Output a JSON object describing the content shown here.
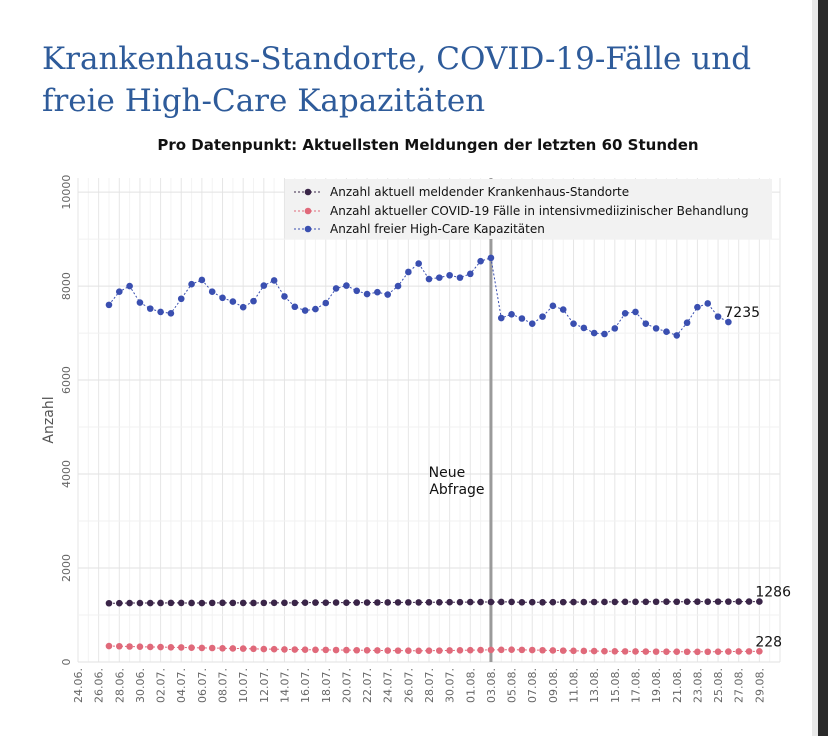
{
  "page": {
    "heading_line1": "Krankenhaus-Standorte, COVID-19-Fälle und",
    "heading_line2": "freie High-Care Kapazitäten"
  },
  "colors": {
    "heading": "#2e5b9a",
    "series_hospitals": "#3a2548",
    "series_covid": "#e0697a",
    "series_highcare": "#3a4fb0",
    "vline": "#9a9a9a"
  },
  "chart_data": {
    "type": "line",
    "title": "Pro Datenpunkt: Aktuellsten Meldungen der letzten 60 Stunden",
    "xlabel": "",
    "ylabel": "Anzahl",
    "ylim": [
      0,
      10300
    ],
    "yticks": [
      0,
      2000,
      4000,
      6000,
      8000,
      10000
    ],
    "xlim": [
      0,
      68
    ],
    "x_tick_labels": [
      "24.06.",
      "26.06.",
      "28.06.",
      "30.06.",
      "02.07.",
      "04.07.",
      "06.07.",
      "08.07.",
      "10.07.",
      "12.07.",
      "14.07.",
      "16.07.",
      "18.07.",
      "20.07.",
      "22.07.",
      "24.07.",
      "26.07.",
      "28.07.",
      "30.07.",
      "01.08.",
      "03.08.",
      "05.08.",
      "07.08.",
      "09.08.",
      "11.08.",
      "13.08.",
      "15.08.",
      "17.08.",
      "19.08.",
      "21.08.",
      "23.08.",
      "25.08.",
      "27.08.",
      "29.08."
    ],
    "x_start": 3,
    "grid": true,
    "legend_position": "top-right",
    "annotation": {
      "text_line1": "Neue",
      "text_line2": "Abfrage",
      "x": 40
    },
    "series": [
      {
        "name": "Anzahl aktuell meldender Krankenhaus-Standorte",
        "end_label": "1286",
        "values": [
          1250,
          1252,
          1255,
          1255,
          1254,
          1256,
          1258,
          1257,
          1256,
          1255,
          1258,
          1259,
          1258,
          1257,
          1256,
          1258,
          1260,
          1259,
          1258,
          1262,
          1264,
          1263,
          1265,
          1262,
          1264,
          1265,
          1266,
          1267,
          1268,
          1269,
          1268,
          1270,
          1271,
          1272,
          1273,
          1275,
          1276,
          1277,
          1278,
          1279,
          1270,
          1272,
          1271,
          1273,
          1274,
          1276,
          1275,
          1277,
          1278,
          1279,
          1280,
          1280,
          1281,
          1282,
          1283,
          1282,
          1283,
          1284,
          1284,
          1285,
          1285,
          1286,
          1286,
          1286
        ]
      },
      {
        "name": "Anzahl aktueller COVID-19 Fälle in intensivmediizinischer Behandlung",
        "end_label": "228",
        "values": [
          340,
          335,
          330,
          325,
          320,
          318,
          312,
          310,
          305,
          300,
          298,
          292,
          288,
          285,
          280,
          275,
          272,
          268,
          265,
          262,
          260,
          258,
          255,
          253,
          250,
          248,
          246,
          244,
          242,
          240,
          238,
          240,
          242,
          245,
          248,
          252,
          255,
          258,
          260,
          262,
          258,
          255,
          250,
          246,
          242,
          238,
          235,
          232,
          230,
          228,
          226,
          224,
          222,
          221,
          220,
          219,
          218,
          217,
          218,
          220,
          222,
          224,
          226,
          228
        ]
      },
      {
        "name": "Anzahl freier High-Care Kapazitäten",
        "end_label": "7235",
        "values": [
          7600,
          7880,
          8000,
          7650,
          7520,
          7450,
          7420,
          7730,
          8040,
          8130,
          7880,
          7750,
          7670,
          7550,
          7680,
          8010,
          8120,
          7780,
          7560,
          7480,
          7510,
          7640,
          7950,
          8010,
          7900,
          7830,
          7870,
          7820,
          8000,
          8300,
          8480,
          8150,
          8180,
          8230,
          8180,
          8260,
          8530,
          8600,
          7320,
          7400,
          7310,
          7200,
          7350,
          7580,
          7500,
          7200,
          7110,
          7000,
          6980,
          7100,
          7420,
          7450,
          7200,
          7100,
          7030,
          6950,
          7220,
          7550,
          7630,
          7350,
          7235
        ]
      }
    ]
  }
}
